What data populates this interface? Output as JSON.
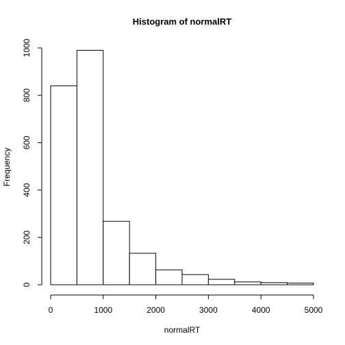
{
  "chart_data": {
    "type": "bar",
    "title": "Histogram of normalRT",
    "xlabel": "normalRT",
    "ylabel": "Frequency",
    "bins": [
      {
        "start": 0,
        "end": 500,
        "count": 840
      },
      {
        "start": 500,
        "end": 1000,
        "count": 990
      },
      {
        "start": 1000,
        "end": 1500,
        "count": 268
      },
      {
        "start": 1500,
        "end": 2000,
        "count": 133
      },
      {
        "start": 2000,
        "end": 2500,
        "count": 63
      },
      {
        "start": 2500,
        "end": 3000,
        "count": 43
      },
      {
        "start": 3000,
        "end": 3500,
        "count": 23
      },
      {
        "start": 3500,
        "end": 4000,
        "count": 12
      },
      {
        "start": 4000,
        "end": 4500,
        "count": 9
      },
      {
        "start": 4500,
        "end": 5000,
        "count": 7
      }
    ],
    "xlim": [
      0,
      5000
    ],
    "ylim": [
      0,
      1000
    ],
    "xticks": [
      0,
      1000,
      2000,
      3000,
      4000,
      5000
    ],
    "yticks": [
      0,
      200,
      400,
      600,
      800,
      1000
    ],
    "grid": false
  }
}
